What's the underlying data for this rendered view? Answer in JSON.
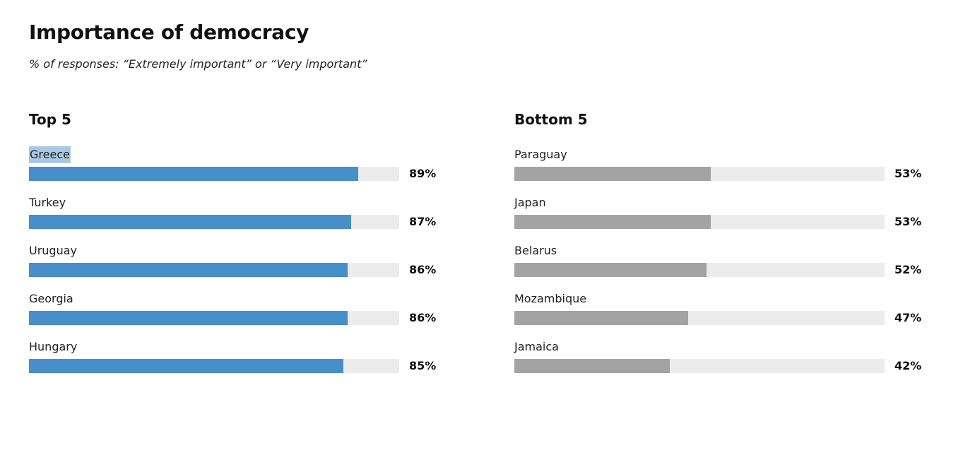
{
  "title": "Importance of democracy",
  "subtitle": "% of responses: “Extremely important” or “Very important”",
  "colors": {
    "top_bar": "#478fcb",
    "bottom_bar": "#a3a3a3",
    "track": "#ececec",
    "highlight": "#a9c9e3"
  },
  "chart_data": [
    {
      "type": "bar",
      "orientation": "horizontal",
      "title": "Top 5",
      "categories": [
        "Greece",
        "Turkey",
        "Uruguay",
        "Georgia",
        "Hungary"
      ],
      "values": [
        89,
        87,
        86,
        86,
        85
      ],
      "value_labels": [
        "89%",
        "87%",
        "86%",
        "86%",
        "85%"
      ],
      "xlim": [
        0,
        100
      ],
      "unit": "%",
      "color": "#478fcb",
      "highlighted_category": "Greece"
    },
    {
      "type": "bar",
      "orientation": "horizontal",
      "title": "Bottom 5",
      "categories": [
        "Paraguay",
        "Japan",
        "Belarus",
        "Mozambique",
        "Jamaica"
      ],
      "values": [
        53,
        53,
        52,
        47,
        42
      ],
      "value_labels": [
        "53%",
        "53%",
        "52%",
        "47%",
        "42%"
      ],
      "xlim": [
        0,
        100
      ],
      "unit": "%",
      "color": "#a3a3a3"
    }
  ]
}
